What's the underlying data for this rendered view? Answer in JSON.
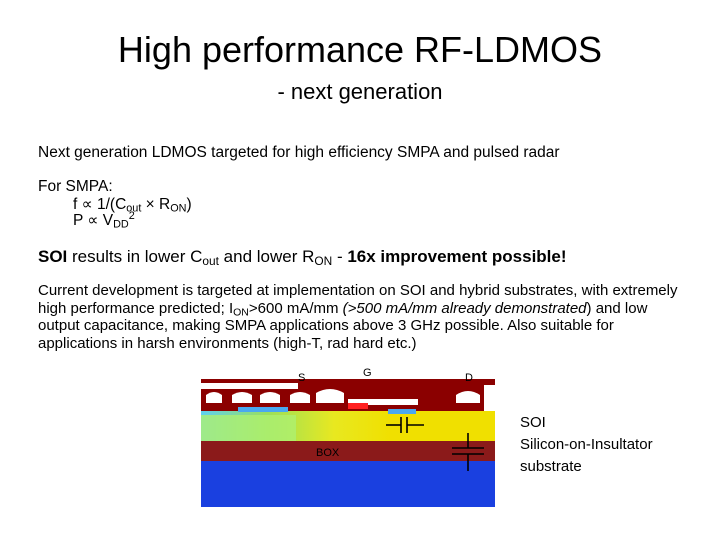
{
  "title": "High performance RF-LDMOS",
  "subtitle": "- next generation",
  "line1": "Next generation LDMOS targeted for high efficiency SMPA and pulsed radar",
  "smpa": {
    "heading": "For SMPA:",
    "f_formula_a": "f ∝ 1/(C",
    "f_formula_sub1": "out",
    "f_formula_b": " × R",
    "f_formula_sub2": "ON",
    "f_formula_c": ")",
    "p_formula_a": "P ∝ V",
    "p_formula_sub": "DD",
    "p_formula_sup": "2"
  },
  "soi_line": {
    "lead_bold": "SOI",
    "part1": " results in lower C",
    "sub1": "out",
    "part2": " and lower R",
    "sub2": "ON",
    "part3": " - ",
    "tail_bold": "16x improvement possible!"
  },
  "paragraph": {
    "p1": "Current development is targeted at implementation on SOI and hybrid substrates, with extremely high performance predicted; I",
    "sub": "ON",
    "p2": ">600 mA/mm ",
    "italic": "(>500 mA/mm already demonstrated",
    "p3": ") and low output capacitance, making SMPA applications above 3 GHz possible. Also suitable for applications in harsh environments (high-T, rad hard etc.)"
  },
  "diagram": {
    "label_s": "S",
    "label_g": "G",
    "label_d": "D",
    "label_box": "BOX"
  },
  "side_label": {
    "line1": "SOI",
    "line2": "Silicon-on-Insultator",
    "line3": "substrate"
  },
  "colors": {
    "metal": "#8b0000",
    "oxide": "#ffffff",
    "silicon": "#f0e000",
    "box": "#8b1a1a",
    "substrate": "#1a40e0",
    "drift": "#9be05a"
  }
}
